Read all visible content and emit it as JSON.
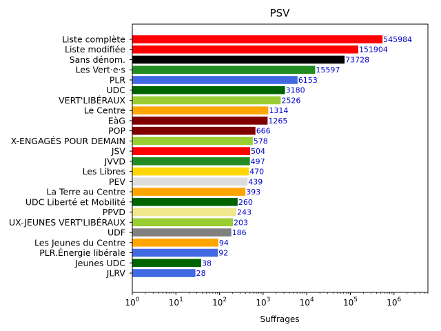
{
  "chart_data": {
    "type": "bar",
    "orientation": "horizontal",
    "title": "PSV",
    "xlabel": "Suffrages",
    "ylabel": "",
    "xscale": "log",
    "xlim": [
      1,
      6000000
    ],
    "xticks": [
      1,
      10,
      100,
      1000,
      10000,
      100000,
      1000000
    ],
    "xtick_labels": [
      "10^0",
      "10^1",
      "10^2",
      "10^3",
      "10^4",
      "10^5",
      "10^6"
    ],
    "grid": false,
    "value_label_color": "#0000cc",
    "bars": [
      {
        "category": "Liste complète",
        "value": 545984,
        "color": "#ff0000"
      },
      {
        "category": "Liste modifiée",
        "value": 151904,
        "color": "#ff0000"
      },
      {
        "category": "Sans dénom.",
        "value": 73728,
        "color": "#000000"
      },
      {
        "category": "Les Vert·e·s",
        "value": 15597,
        "color": "#228b22"
      },
      {
        "category": "PLR",
        "value": 6153,
        "color": "#4169e1"
      },
      {
        "category": "UDC",
        "value": 3180,
        "color": "#006400"
      },
      {
        "category": "VERT'LIBÉRAUX",
        "value": 2526,
        "color": "#9acd32"
      },
      {
        "category": "Le Centre",
        "value": 1314,
        "color": "#ffa500"
      },
      {
        "category": "EàG",
        "value": 1265,
        "color": "#800000"
      },
      {
        "category": "POP",
        "value": 666,
        "color": "#800000"
      },
      {
        "category": "X-ENGAGÉS POUR DEMAIN",
        "value": 578,
        "color": "#9acd32"
      },
      {
        "category": "JSV",
        "value": 504,
        "color": "#ff0000"
      },
      {
        "category": "JVVD",
        "value": 497,
        "color": "#228b22"
      },
      {
        "category": "Les Libres",
        "value": 470,
        "color": "#ffd700"
      },
      {
        "category": "PEV",
        "value": 439,
        "color": "#dcdcdc"
      },
      {
        "category": "La Terre au Centre",
        "value": 393,
        "color": "#ffa500"
      },
      {
        "category": "UDC Liberté et Mobilité",
        "value": 260,
        "color": "#006400"
      },
      {
        "category": "PPVD",
        "value": 243,
        "color": "#f0e68c"
      },
      {
        "category": "UX-JEUNES VERT'LIBÉRAUX",
        "value": 203,
        "color": "#9acd32"
      },
      {
        "category": "UDF",
        "value": 186,
        "color": "#808080"
      },
      {
        "category": "Les Jeunes du Centre",
        "value": 94,
        "color": "#ffa500"
      },
      {
        "category": "PLR.Énergie libérale",
        "value": 92,
        "color": "#4169e1"
      },
      {
        "category": "Jeunes UDC",
        "value": 38,
        "color": "#006400"
      },
      {
        "category": "JLRV",
        "value": 28,
        "color": "#4169e1"
      }
    ]
  }
}
